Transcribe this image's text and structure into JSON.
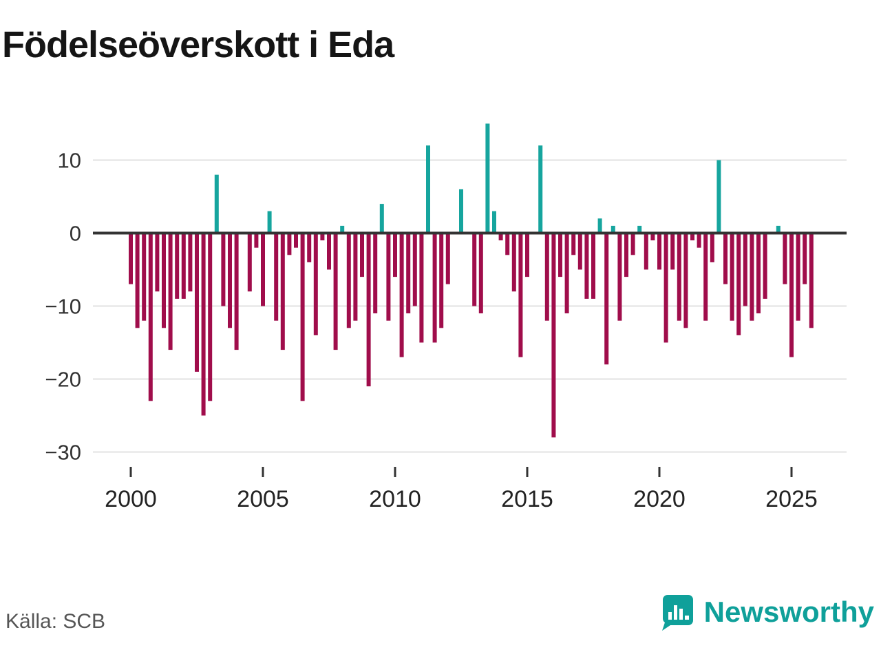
{
  "title": "Födelseöverskott i Eda",
  "footer": {
    "source": "Källa: SCB",
    "brand": "Newsworthy",
    "brand_color": "#0fa09a"
  },
  "chart_data": {
    "type": "bar",
    "title": "Födelseöverskott i Eda",
    "source": "Källa: SCB",
    "frequency": "quarterly",
    "start_year": 2000,
    "start_quarter": 1,
    "end_year": 2025,
    "end_quarter": 4,
    "ylim": [
      -30,
      16
    ],
    "grid": true,
    "yticks": [
      {
        "value": 10,
        "label": "10"
      },
      {
        "value": 0,
        "label": "0"
      },
      {
        "value": -10,
        "label": "−10"
      },
      {
        "value": -20,
        "label": "−20"
      },
      {
        "value": -30,
        "label": "−30"
      }
    ],
    "xticks": [
      {
        "year": 2000,
        "label": "2000"
      },
      {
        "year": 2005,
        "label": "2005"
      },
      {
        "year": 2010,
        "label": "2010"
      },
      {
        "year": 2015,
        "label": "2015"
      },
      {
        "year": 2020,
        "label": "2020"
      },
      {
        "year": 2025,
        "label": "2025"
      }
    ],
    "colors": {
      "positive": "#16a59e",
      "negative": "#a00d4b",
      "grid": "#e2e2e2",
      "zero_line": "#333333"
    },
    "values": [
      -7,
      -13,
      -12,
      -23,
      -8,
      -13,
      -16,
      -9,
      -9,
      -8,
      -19,
      -25,
      -23,
      8,
      -10,
      -13,
      -16,
      0,
      -8,
      -2,
      -10,
      3,
      -12,
      -16,
      -3,
      -2,
      -23,
      -4,
      -14,
      -1,
      -5,
      -16,
      1,
      -13,
      -12,
      -6,
      -21,
      -11,
      4,
      -12,
      -6,
      -17,
      -11,
      -10,
      -15,
      12,
      -15,
      -13,
      -7,
      0,
      6,
      0,
      -10,
      -11,
      15,
      3,
      -1,
      -3,
      -8,
      -17,
      -6,
      0,
      12,
      -12,
      -28,
      -6,
      -11,
      -3,
      -5,
      -9,
      -9,
      2,
      -18,
      1,
      -12,
      -6,
      -3,
      1,
      -5,
      -1,
      -5,
      -15,
      -5,
      -12,
      -13,
      -1,
      -2,
      -12,
      -4,
      10,
      -7,
      -12,
      -14,
      -10,
      -12,
      -11,
      -9,
      0,
      1,
      -7,
      -17,
      -12,
      -7,
      -13
    ]
  }
}
